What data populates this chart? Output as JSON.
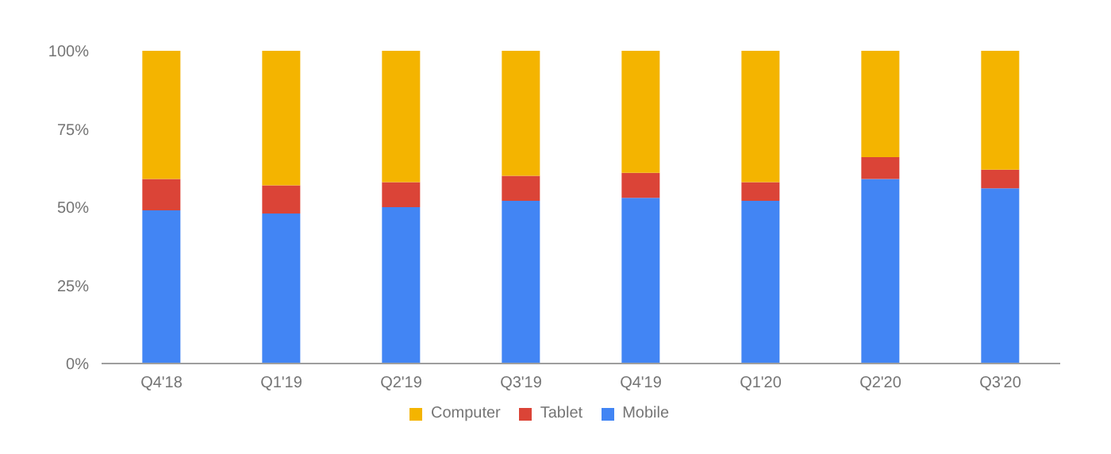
{
  "chart_data": {
    "type": "bar",
    "stacked": true,
    "categories": [
      "Q4'18",
      "Q1'19",
      "Q2'19",
      "Q3'19",
      "Q4'19",
      "Q1'20",
      "Q2'20",
      "Q3'20"
    ],
    "series": [
      {
        "name": "Mobile",
        "color": "#4285f4",
        "values": [
          49,
          48,
          50,
          52,
          53,
          52,
          59,
          56
        ]
      },
      {
        "name": "Tablet",
        "color": "#db4437",
        "values": [
          10,
          9,
          8,
          8,
          8,
          6,
          7,
          6
        ]
      },
      {
        "name": "Computer",
        "color": "#f4b400",
        "values": [
          41,
          43,
          42,
          40,
          39,
          42,
          34,
          38
        ]
      }
    ],
    "ylim": [
      0,
      100
    ],
    "yticks": [
      {
        "value": 0,
        "label": "0%"
      },
      {
        "value": 25,
        "label": "25%"
      },
      {
        "value": 50,
        "label": "50%"
      },
      {
        "value": 75,
        "label": "75%"
      },
      {
        "value": 100,
        "label": "100%"
      }
    ],
    "grid": false,
    "legend": "bottom"
  }
}
